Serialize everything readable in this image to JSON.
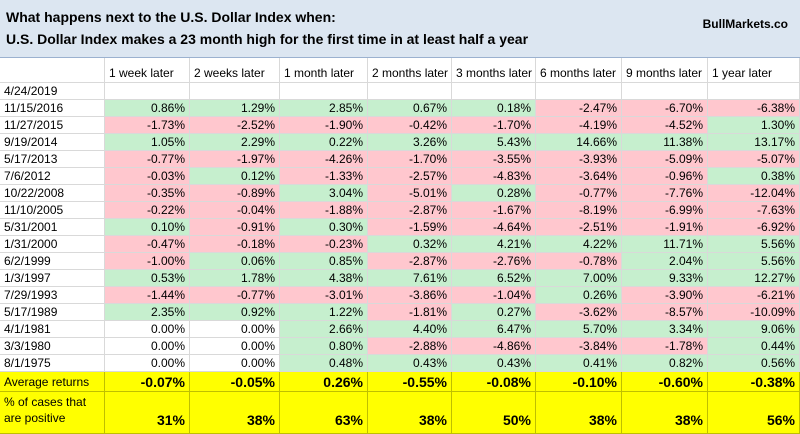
{
  "header": {
    "title_line1": "What happens next to the U.S. Dollar Index when:",
    "title_line2": "U.S. Dollar Index makes a 23 month high for the first time in at least half a year",
    "site": "BullMarkets.co"
  },
  "table": {
    "columns": [
      "1 week later",
      "2 weeks later",
      "1 month later",
      "2 months later",
      "3 months later",
      "6 months later",
      "9 months later",
      "1 year later"
    ],
    "rows": [
      {
        "date": "4/24/2019",
        "values": []
      },
      {
        "date": "11/15/2016",
        "values": [
          "0.86%",
          "1.29%",
          "2.85%",
          "0.67%",
          "0.18%",
          "-2.47%",
          "-6.70%",
          "-6.38%"
        ]
      },
      {
        "date": "11/27/2015",
        "values": [
          "-1.73%",
          "-2.52%",
          "-1.90%",
          "-0.42%",
          "-1.70%",
          "-4.19%",
          "-4.52%",
          "1.30%"
        ]
      },
      {
        "date": "9/19/2014",
        "values": [
          "1.05%",
          "2.29%",
          "0.22%",
          "3.26%",
          "5.43%",
          "14.66%",
          "11.38%",
          "13.17%"
        ]
      },
      {
        "date": "5/17/2013",
        "values": [
          "-0.77%",
          "-1.97%",
          "-4.26%",
          "-1.70%",
          "-3.55%",
          "-3.93%",
          "-5.09%",
          "-5.07%"
        ]
      },
      {
        "date": "7/6/2012",
        "values": [
          "-0.03%",
          "0.12%",
          "-1.33%",
          "-2.57%",
          "-4.83%",
          "-3.64%",
          "-0.96%",
          "0.38%"
        ]
      },
      {
        "date": "10/22/2008",
        "values": [
          "-0.35%",
          "-0.89%",
          "3.04%",
          "-5.01%",
          "0.28%",
          "-0.77%",
          "-7.76%",
          "-12.04%"
        ]
      },
      {
        "date": "11/10/2005",
        "values": [
          "-0.22%",
          "-0.04%",
          "-1.88%",
          "-2.87%",
          "-1.67%",
          "-8.19%",
          "-6.99%",
          "-7.63%"
        ]
      },
      {
        "date": "5/31/2001",
        "values": [
          "0.10%",
          "-0.91%",
          "0.30%",
          "-1.59%",
          "-4.64%",
          "-2.51%",
          "-1.91%",
          "-6.92%"
        ]
      },
      {
        "date": "1/31/2000",
        "values": [
          "-0.47%",
          "-0.18%",
          "-0.23%",
          "0.32%",
          "4.21%",
          "4.22%",
          "11.71%",
          "5.56%"
        ]
      },
      {
        "date": "6/2/1999",
        "values": [
          "-1.00%",
          "0.06%",
          "0.85%",
          "-2.87%",
          "-2.76%",
          "-0.78%",
          "2.04%",
          "5.56%"
        ]
      },
      {
        "date": "1/3/1997",
        "values": [
          "0.53%",
          "1.78%",
          "4.38%",
          "7.61%",
          "6.52%",
          "7.00%",
          "9.33%",
          "12.27%"
        ]
      },
      {
        "date": "7/29/1993",
        "values": [
          "-1.44%",
          "-0.77%",
          "-3.01%",
          "-3.86%",
          "-1.04%",
          "0.26%",
          "-3.90%",
          "-6.21%"
        ]
      },
      {
        "date": "5/17/1989",
        "values": [
          "2.35%",
          "0.92%",
          "1.22%",
          "-1.81%",
          "0.27%",
          "-3.62%",
          "-8.57%",
          "-10.09%"
        ]
      },
      {
        "date": "4/1/1981",
        "values": [
          "0.00%",
          "0.00%",
          "2.66%",
          "4.40%",
          "6.47%",
          "5.70%",
          "3.34%",
          "9.06%"
        ]
      },
      {
        "date": "3/3/1980",
        "values": [
          "0.00%",
          "0.00%",
          "0.80%",
          "-2.88%",
          "-4.86%",
          "-3.84%",
          "-1.78%",
          "0.44%"
        ]
      },
      {
        "date": "8/1/1975",
        "values": [
          "0.00%",
          "0.00%",
          "0.48%",
          "0.43%",
          "0.43%",
          "0.41%",
          "0.82%",
          "0.56%"
        ]
      }
    ],
    "average": {
      "label": "Average returns",
      "values": [
        "-0.07%",
        "-0.05%",
        "0.26%",
        "-0.55%",
        "-0.08%",
        "-0.10%",
        "-0.60%",
        "-0.38%"
      ]
    },
    "positive": {
      "label_lines": [
        "% of cases that",
        "are positive"
      ],
      "values": [
        "31%",
        "38%",
        "63%",
        "38%",
        "50%",
        "38%",
        "38%",
        "56%"
      ]
    }
  }
}
